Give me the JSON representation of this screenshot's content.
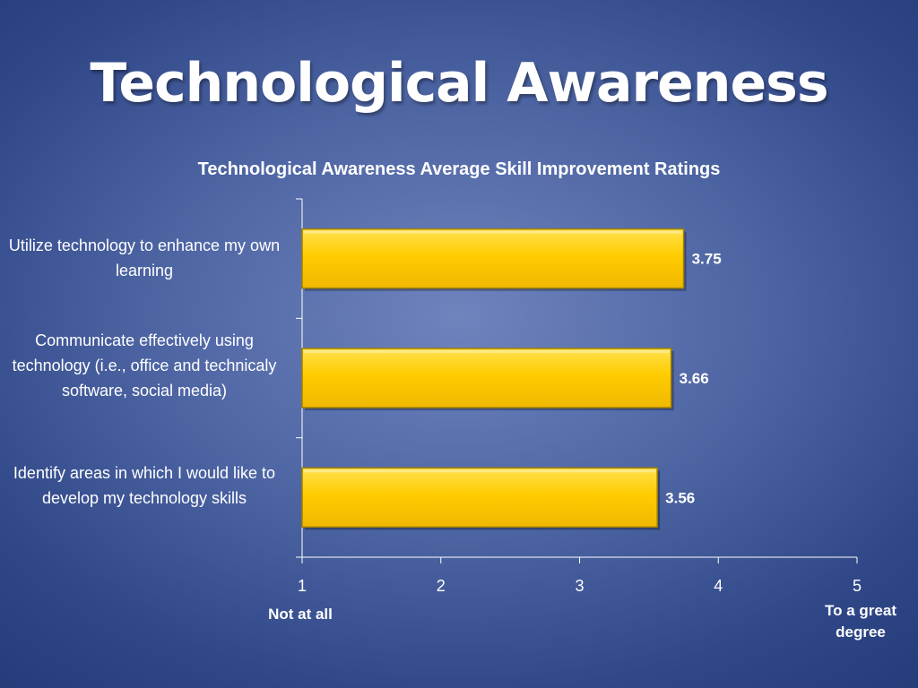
{
  "slide": {
    "title": "Technological Awareness"
  },
  "chart_data": {
    "type": "bar",
    "orientation": "horizontal",
    "title": "Technological Awareness Average Skill Improvement Ratings",
    "categories": [
      "Utilize technology to enhance my own learning",
      "Communicate effectively using technology (i.e., office and technicaly software, social media)",
      "Identify areas in which I would like to develop my technology skills"
    ],
    "values": [
      3.75,
      3.66,
      3.56
    ],
    "value_labels": [
      "3.75",
      "3.66",
      "3.56"
    ],
    "xlim": [
      1,
      5
    ],
    "xticks": [
      "1",
      "2",
      "3",
      "4",
      "5"
    ],
    "x_low_label": "Not at all",
    "x_high_label": "To a great degree",
    "grid": false,
    "colors": {
      "bar": "#ffcc00",
      "bar_border": "#a08000",
      "axis": "#ffffff"
    }
  }
}
